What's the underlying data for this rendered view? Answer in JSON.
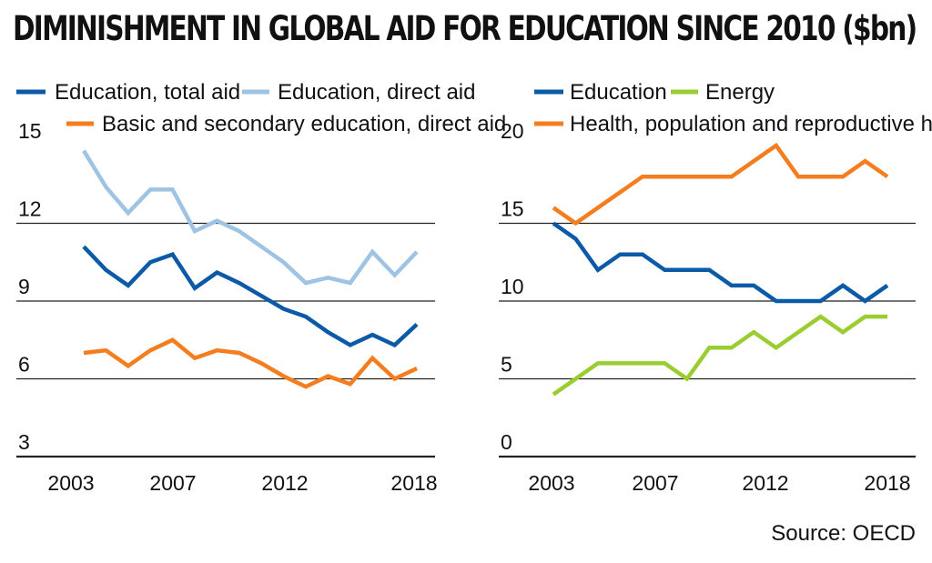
{
  "title": "DIMINISHMENT IN GLOBAL AID FOR EDUCATION SINCE 2010 ($bn)",
  "source": "Source: OECD",
  "chart_data": [
    {
      "type": "line",
      "x": [
        2003,
        2004,
        2005,
        2006,
        2007,
        2007.5,
        2008,
        2009,
        2010,
        2011,
        2012,
        2013,
        2014,
        2015,
        2016,
        2017,
        2018
      ],
      "xticks": [
        "2003",
        "2007",
        "2012",
        "2018"
      ],
      "ylim": [
        3,
        15
      ],
      "yticks": [
        "15",
        "12",
        "9",
        "6",
        "3"
      ],
      "series": [
        {
          "name": "Education, total aid",
          "color": "#0b5aa8",
          "values": [
            11.1,
            10.2,
            9.6,
            10.5,
            10.8,
            9.5,
            10.1,
            9.7,
            9.2,
            8.7,
            8.4,
            7.8,
            7.3,
            7.7,
            7.3,
            8.1,
            null
          ]
        },
        {
          "name": "Education, direct aid",
          "color": "#9fc3e2",
          "values": [
            14.8,
            13.4,
            12.4,
            13.3,
            13.3,
            11.7,
            12.1,
            11.7,
            11.1,
            10.5,
            9.7,
            9.9,
            9.7,
            10.9,
            10.0,
            10.9,
            null
          ]
        },
        {
          "name": "Basic and secondary education, direct aid",
          "color": "#f47e1f",
          "values": [
            7.0,
            7.1,
            6.5,
            7.1,
            7.5,
            6.8,
            7.1,
            7.0,
            6.6,
            6.1,
            5.7,
            6.1,
            5.8,
            6.8,
            6.0,
            6.4,
            null
          ]
        }
      ]
    },
    {
      "type": "line",
      "x": [
        2003,
        2004,
        2005,
        2006,
        2007,
        2008,
        2009,
        2010,
        2011,
        2012,
        2013,
        2014,
        2015,
        2016,
        2017,
        2018
      ],
      "xticks": [
        "2003",
        "2007",
        "2012",
        "2018"
      ],
      "ylim": [
        0,
        20
      ],
      "yticks": [
        "20",
        "15",
        "10",
        "5",
        "0"
      ],
      "series": [
        {
          "name": "Education",
          "color": "#0b5aa8",
          "values": [
            15,
            14,
            12,
            13,
            13,
            12,
            12,
            12,
            11,
            11,
            10,
            10,
            10,
            11,
            10,
            11
          ]
        },
        {
          "name": "Energy",
          "color": "#9acd32",
          "values": [
            4,
            5,
            6,
            6,
            6,
            6,
            5,
            7,
            7,
            8,
            7,
            8,
            9,
            8,
            9,
            9
          ]
        },
        {
          "name": "Health, population and reproductive health",
          "color": "#f47e1f",
          "values": [
            16,
            15,
            16,
            17,
            18,
            18,
            18,
            18,
            18,
            19,
            20,
            18,
            18,
            18,
            19,
            18
          ]
        }
      ]
    }
  ]
}
